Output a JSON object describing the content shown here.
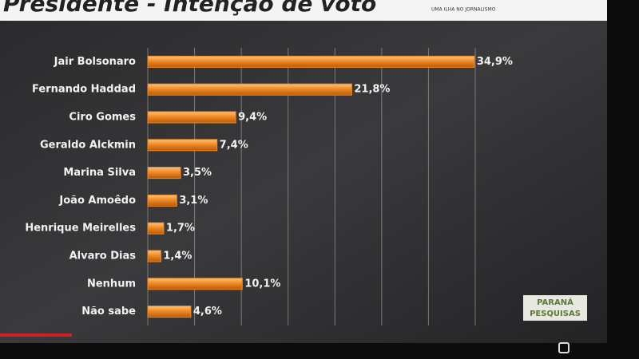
{
  "chart_data": {
    "type": "bar",
    "orientation": "horizontal",
    "title": "Presidente - Intenção de voto",
    "brand_tagline": "UMA ILHA NO JORNALISMO",
    "source_logo": [
      "PARANÁ",
      "PESQUISAS"
    ],
    "categories": [
      "Jair Bolsonaro",
      "Fernando Haddad",
      "Ciro Gomes",
      "Geraldo Alckmin",
      "Marina Silva",
      "João Amoêdo",
      "Henrique Meirelles",
      "Alvaro Dias",
      "Nenhum",
      "Não sabe"
    ],
    "values": [
      34.9,
      21.8,
      9.4,
      7.4,
      3.5,
      3.1,
      1.7,
      1.4,
      10.1,
      4.6
    ],
    "value_labels": [
      "34,9%",
      "21,8%",
      "9,4%",
      "7,4%",
      "3,5%",
      "3,1%",
      "1,7%",
      "1,4%",
      "10,1%",
      "4,6%"
    ],
    "color": "#f08a24",
    "xlim": [
      0,
      35
    ],
    "xticks": [
      0,
      5,
      10,
      15,
      20,
      25,
      30,
      35
    ],
    "grid": true
  }
}
